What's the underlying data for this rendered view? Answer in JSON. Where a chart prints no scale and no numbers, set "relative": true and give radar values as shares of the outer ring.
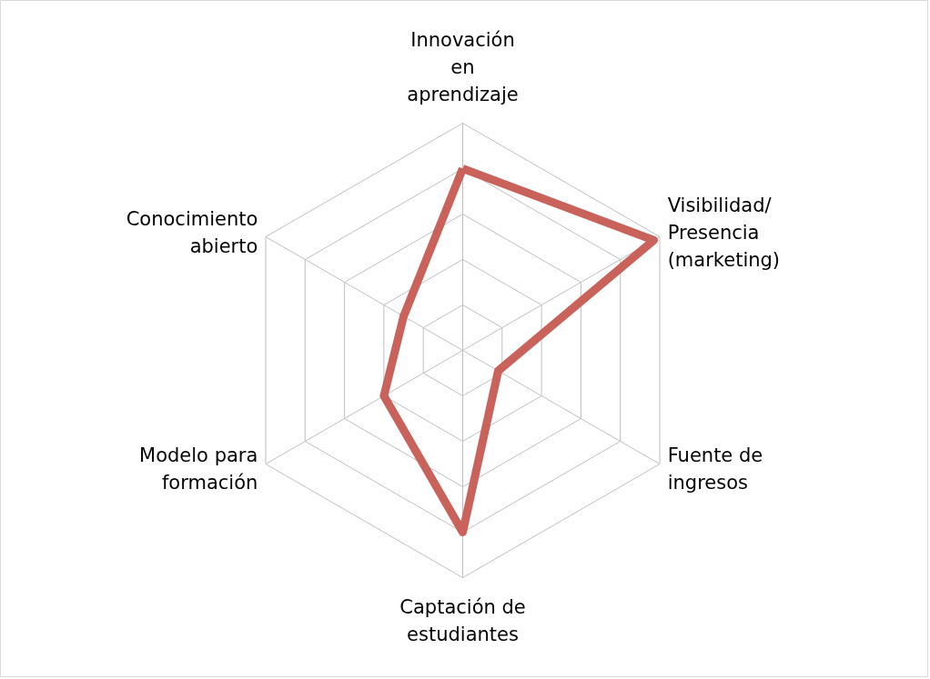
{
  "chart_data": {
    "type": "radar",
    "relative": true,
    "categories": [
      "Innovación en aprendizaje",
      "Visibilidad/ Presencia (marketing)",
      "Fuente de ingresos",
      "Captación de estudiantes",
      "Modelo para formación",
      "Conocimiento abierto"
    ],
    "series": [
      {
        "color": "#c9625a",
        "values": [
          0.8,
          0.97,
          0.18,
          0.8,
          0.4,
          0.3
        ]
      }
    ],
    "grid": true
  }
}
